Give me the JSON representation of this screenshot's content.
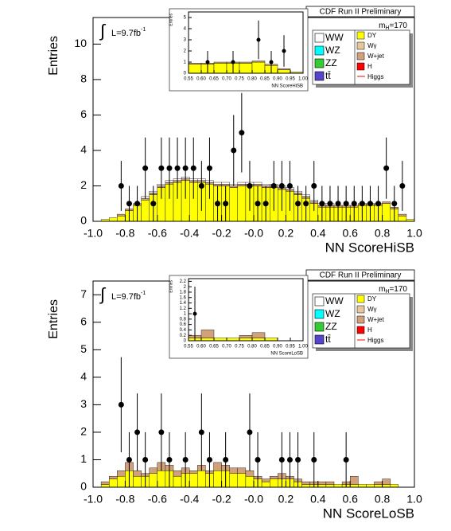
{
  "chart_data": [
    {
      "type": "histogram",
      "title": "CDF Run II Preliminary",
      "ylabel": "Entries",
      "xlabel": "NN ScoreHiSB",
      "lumi": {
        "integral": "∫",
        "text": "L=9.7fb",
        "superscript": "-1"
      },
      "mass": {
        "symbol": "m",
        "subscript": "H",
        "text": "=170"
      },
      "xlim": [
        -1,
        1
      ],
      "ylim": [
        0,
        11.5
      ],
      "xticks": [
        {
          "value": -1,
          "label": "-1.0"
        },
        -0.8,
        -0.6,
        -0.4,
        -0.2,
        {
          "value": 0,
          "label": "-0.0"
        },
        0.2,
        0.4,
        0.6,
        0.8,
        {
          "value": 1,
          "label": "1.0"
        }
      ],
      "yticks": [
        0,
        2,
        4,
        6,
        8,
        10
      ],
      "bins": [
        -1,
        -0.95,
        -0.9,
        -0.85,
        -0.8,
        -0.75,
        -0.7,
        -0.65,
        -0.6,
        -0.55,
        -0.5,
        -0.45,
        -0.4,
        -0.35,
        -0.3,
        -0.25,
        -0.2,
        -0.15,
        -0.1,
        -0.05,
        0,
        0.05,
        0.1,
        0.15,
        0.2,
        0.25,
        0.3,
        0.35,
        0.4,
        0.45,
        0.5,
        0.55,
        0.6,
        0.65,
        0.7,
        0.75,
        0.8,
        0.85,
        0.9,
        0.95,
        1
      ],
      "series": [
        {
          "name": "WW",
          "color": "#ffffff",
          "values": [
            0,
            0,
            0,
            0,
            0,
            0,
            0.1,
            0.1,
            0.1,
            0.1,
            0.1,
            0.1,
            0.1,
            0.1,
            0.1,
            0.1,
            0.1,
            0.1,
            0.1,
            0.1,
            0.1,
            0.1,
            0.1,
            0.1,
            0.1,
            0.1,
            0.1,
            0.1,
            0.1,
            0.1,
            0,
            0,
            0,
            0,
            0,
            0,
            0,
            0,
            0,
            0
          ]
        },
        {
          "name": "WZ",
          "color": "#00ffff"
        },
        {
          "name": "ZZ",
          "color": "#33cc33"
        },
        {
          "name": "tt̄",
          "color": "#5544cc"
        },
        {
          "name": "DY",
          "color": "#ffff00",
          "values": [
            0,
            0.1,
            0.2,
            0.3,
            0.6,
            0.9,
            1.2,
            1.5,
            1.9,
            2.1,
            2.2,
            2.3,
            2.2,
            2.2,
            2.1,
            2.0,
            2.0,
            1.9,
            2.0,
            2.0,
            2.0,
            1.9,
            1.9,
            1.8,
            1.7,
            1.5,
            1.3,
            1.0,
            0.8,
            0.8,
            0.8,
            0.8,
            0.8,
            0.9,
            0.9,
            0.9,
            1.0,
            0.7,
            0.3,
            0.1
          ]
        },
        {
          "name": "Wγ",
          "color": "#e8c89a"
        },
        {
          "name": "W+jet",
          "color": "#d2a07a",
          "values": [
            0,
            0,
            0,
            0.1,
            0.1,
            0.1,
            0.1,
            0.1,
            0.1,
            0.1,
            0.1,
            0.1,
            0.1,
            0.1,
            0.1,
            0.1,
            0.1,
            0.1,
            0.1,
            0.1,
            0.1,
            0.1,
            0.1,
            0.1,
            0.1,
            0.1,
            0.1,
            0.1,
            0.1,
            0.1,
            0.1,
            0.1,
            0.1,
            0.1,
            0.1,
            0.1,
            0.1,
            0.1,
            0.1,
            0
          ]
        },
        {
          "name": "H",
          "color": "#ff0000"
        },
        {
          "name": "Higgs",
          "color": "#ff0000",
          "style": "line"
        }
      ],
      "data_points": {
        "x": [
          -0.825,
          -0.775,
          -0.725,
          -0.675,
          -0.625,
          -0.575,
          -0.525,
          -0.475,
          -0.425,
          -0.375,
          -0.325,
          -0.275,
          -0.225,
          -0.175,
          -0.125,
          -0.075,
          -0.025,
          0.025,
          0.075,
          0.125,
          0.175,
          0.225,
          0.275,
          0.325,
          0.375,
          0.425,
          0.475,
          0.525,
          0.575,
          0.625,
          0.675,
          0.725,
          0.775,
          0.825,
          0.875,
          0.925
        ],
        "values": [
          2,
          1,
          1,
          3,
          1,
          3,
          3,
          3,
          3,
          3,
          2,
          3,
          1,
          1,
          4,
          5,
          2,
          1,
          1,
          2,
          2,
          2,
          1,
          1,
          2,
          1,
          1,
          1,
          1,
          1,
          1,
          1,
          1,
          3,
          1,
          2
        ],
        "errors": [
          1.41,
          1,
          1,
          1.73,
          1,
          1.73,
          1.73,
          1.73,
          1.73,
          1.73,
          1.41,
          1.73,
          1,
          1,
          2,
          2.24,
          1.41,
          1,
          1,
          1.41,
          1.41,
          1.41,
          1,
          1,
          1.41,
          1,
          1,
          1,
          1,
          1,
          1,
          1,
          1,
          1.73,
          1,
          1.41
        ]
      }
    },
    {
      "type": "histogram",
      "ylabel": "Entries",
      "xlabel": "NN ScoreHiSB",
      "xlim": [
        0.55,
        1
      ],
      "ylim": [
        0,
        5.5
      ],
      "xticks": [
        0.55,
        {
          "value": 0.6,
          "label": "0.60"
        },
        0.65,
        {
          "value": 0.7,
          "label": "0.70"
        },
        0.75,
        {
          "value": 0.8,
          "label": "0.80"
        },
        0.85,
        {
          "value": 0.9,
          "label": "0.90"
        },
        0.95,
        {
          "value": 1,
          "label": "1.00"
        }
      ],
      "yticks": [
        0,
        1,
        2,
        3,
        4,
        5
      ],
      "bins": [
        0.55,
        0.6,
        0.65,
        0.7,
        0.75,
        0.8,
        0.85,
        0.9,
        0.95,
        1
      ],
      "series": [
        {
          "color": "#ffff00",
          "values": [
            0.8,
            0.8,
            0.9,
            0.9,
            0.9,
            1.0,
            0.7,
            0.3,
            0.1
          ]
        },
        {
          "color": "#d2a07a",
          "values": [
            0.1,
            0.1,
            0.1,
            0.1,
            0.1,
            0.1,
            0.1,
            0.1,
            0
          ]
        }
      ],
      "data_points": {
        "x": [
          0.625,
          0.725,
          0.825,
          0.875,
          0.925
        ],
        "values": [
          1,
          1,
          3,
          1,
          2
        ],
        "errors": [
          1,
          1,
          1.73,
          1,
          1.41
        ]
      }
    },
    {
      "type": "histogram",
      "title": "CDF Run II Preliminary",
      "ylabel": "Entries",
      "xlabel": "NN ScoreLoSB",
      "lumi": {
        "integral": "∫",
        "text": "L=9.7fb",
        "superscript": "-1"
      },
      "mass": {
        "symbol": "m",
        "subscript": "H",
        "text": "=170"
      },
      "xlim": [
        -1,
        1
      ],
      "ylim": [
        0,
        7.5
      ],
      "xticks": [
        {
          "value": -1,
          "label": "-1.0"
        },
        -0.8,
        -0.6,
        -0.4,
        -0.2,
        {
          "value": 0,
          "label": "-0.0"
        },
        0.2,
        0.4,
        0.6,
        0.8,
        {
          "value": 1,
          "label": "1.0"
        }
      ],
      "yticks": [
        0,
        1,
        2,
        3,
        4,
        5,
        6,
        7
      ],
      "bins": [
        -1,
        -0.95,
        -0.9,
        -0.85,
        -0.8,
        -0.75,
        -0.7,
        -0.65,
        -0.6,
        -0.55,
        -0.5,
        -0.45,
        -0.4,
        -0.35,
        -0.3,
        -0.25,
        -0.2,
        -0.15,
        -0.1,
        -0.05,
        0,
        0.05,
        0.1,
        0.15,
        0.2,
        0.25,
        0.3,
        0.35,
        0.4,
        0.45,
        0.5,
        0.55,
        0.6,
        0.65,
        0.7,
        0.75,
        0.8,
        0.85,
        0.9,
        0.95,
        1
      ],
      "series": [
        {
          "name": "WW",
          "color": "#ffffff"
        },
        {
          "name": "WZ",
          "color": "#00ffff"
        },
        {
          "name": "ZZ",
          "color": "#33cc33"
        },
        {
          "name": "tt̄",
          "color": "#5544cc"
        },
        {
          "name": "DY",
          "color": "#ffff00",
          "values": [
            0,
            0.1,
            0.3,
            0.4,
            0.6,
            0.4,
            0.4,
            0.5,
            0.6,
            0.6,
            0.4,
            0.5,
            0.5,
            0.6,
            0.5,
            0.6,
            0.6,
            0.5,
            0.5,
            0.4,
            0.3,
            0.2,
            0.3,
            0.3,
            0.3,
            0.2,
            0.1,
            0.1,
            0.1,
            0.1,
            0.1,
            0.1,
            0.1,
            0.1,
            0.1,
            0.1,
            0.1,
            0.1,
            0,
            0
          ]
        },
        {
          "name": "Wγ",
          "color": "#e8c89a"
        },
        {
          "name": "W+jet",
          "color": "#d2a07a",
          "values": [
            0,
            0.1,
            0.1,
            0.2,
            0.3,
            0.2,
            0.1,
            0.2,
            0.3,
            0.2,
            0.2,
            0.2,
            0.1,
            0.2,
            0.1,
            0.3,
            0.2,
            0.2,
            0.2,
            0.2,
            0.1,
            0.1,
            0.1,
            0.2,
            0.1,
            0.1,
            0.1,
            0.1,
            0.1,
            0.1,
            0,
            0.1,
            0.3,
            0,
            0,
            0.1,
            0.2,
            0,
            0,
            0
          ]
        },
        {
          "name": "H",
          "color": "#ff0000"
        },
        {
          "name": "Higgs",
          "color": "#ff0000",
          "style": "line"
        }
      ],
      "data_points": {
        "x": [
          -0.825,
          -0.775,
          -0.725,
          -0.675,
          -0.575,
          -0.525,
          -0.425,
          -0.325,
          -0.275,
          -0.175,
          -0.025,
          0.025,
          0.175,
          0.225,
          0.275,
          0.375,
          0.575
        ],
        "values": [
          3,
          1,
          2,
          1,
          2,
          1,
          1,
          2,
          1,
          1,
          2,
          1,
          1,
          1,
          1,
          1,
          1
        ],
        "errors": [
          1.73,
          1,
          1.41,
          1,
          1.41,
          1,
          1,
          1.41,
          1,
          1,
          1.41,
          1,
          1,
          1,
          1,
          1,
          1
        ]
      }
    },
    {
      "type": "histogram",
      "ylabel": "Entries",
      "xlabel": "NN ScoreLoSB",
      "xlim": [
        0.55,
        1
      ],
      "ylim": [
        0,
        2.3
      ],
      "xticks": [
        0.55,
        {
          "value": 0.6,
          "label": "0.60"
        },
        0.65,
        {
          "value": 0.7,
          "label": "0.70"
        },
        0.75,
        {
          "value": 0.8,
          "label": "0.80"
        },
        0.85,
        {
          "value": 0.9,
          "label": "0.90"
        },
        0.95,
        {
          "value": 1,
          "label": "1.00"
        }
      ],
      "yticks": [
        0,
        0.2,
        0.4,
        0.6,
        0.8,
        1,
        1.2,
        1.4,
        1.6,
        1.8,
        2,
        2.2
      ],
      "bins": [
        0.55,
        0.6,
        0.65,
        0.7,
        0.75,
        0.8,
        0.85,
        0.9,
        0.95,
        1
      ],
      "series": [
        {
          "color": "#ffff00",
          "values": [
            0.1,
            0.1,
            0.1,
            0.1,
            0.1,
            0.1,
            0.1,
            0,
            0
          ]
        },
        {
          "color": "#d2a07a",
          "values": [
            0.1,
            0.3,
            0,
            0,
            0.1,
            0.2,
            0,
            0,
            0
          ]
        }
      ],
      "data_points": {
        "x": [
          0.575
        ],
        "values": [
          1
        ],
        "errors": [
          1
        ]
      }
    }
  ]
}
